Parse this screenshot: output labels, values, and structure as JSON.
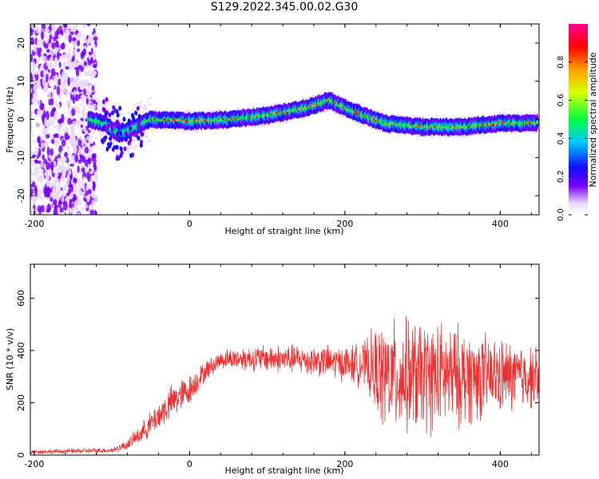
{
  "title": "S129.2022.345.00.02.G30",
  "chart_data": [
    {
      "type": "heatmap",
      "xlabel": "Height of straight line (km)",
      "ylabel": "Frequency (Hz)",
      "xlim": [
        -205,
        450
      ],
      "ylim": [
        -25,
        25
      ],
      "xticks": [
        -200,
        0,
        200,
        400
      ],
      "yticks": [
        -20,
        -10,
        0,
        10,
        20
      ],
      "grid": false,
      "colorbar": {
        "label": "Normalized spectral amplitude",
        "range": [
          0,
          1
        ],
        "ticks": [
          "0.0",
          "0.2",
          "0.4",
          "0.6",
          "0.8"
        ],
        "colormap": "rainbow (white-purple-blue-cyan-green-yellow-red-magenta)"
      },
      "ridge": {
        "x": [
          -130,
          -110,
          -90,
          -70,
          -50,
          0,
          50,
          100,
          150,
          180,
          200,
          250,
          300,
          350,
          400,
          445
        ],
        "y": [
          0,
          -1,
          -4,
          -2,
          0,
          -0.5,
          0,
          1,
          3,
          5,
          3,
          -1,
          -2,
          -2,
          -1,
          -1
        ]
      }
    },
    {
      "type": "line",
      "xlabel": "Height of straight line (km)",
      "ylabel": "SNR (10 * v/v)",
      "xlim": [
        -205,
        450
      ],
      "ylim": [
        0,
        730
      ],
      "xticks": [
        -200,
        0,
        200,
        400
      ],
      "yticks": [
        0,
        200,
        400,
        600
      ],
      "grid": false,
      "series_color": "#f03030",
      "envelope": {
        "x": [
          -205,
          -150,
          -100,
          -80,
          -60,
          -40,
          -20,
          0,
          20,
          40,
          60,
          100,
          150,
          200,
          225,
          235,
          250,
          300,
          350,
          400,
          450
        ],
        "mean": [
          12,
          15,
          18,
          40,
          90,
          150,
          210,
          250,
          320,
          365,
          370,
          370,
          365,
          350,
          345,
          330,
          300,
          300,
          300,
          300,
          300
        ],
        "amp": [
          8,
          10,
          10,
          20,
          40,
          60,
          70,
          60,
          40,
          35,
          45,
          55,
          60,
          70,
          90,
          150,
          220,
          230,
          200,
          150,
          120
        ]
      }
    }
  ]
}
